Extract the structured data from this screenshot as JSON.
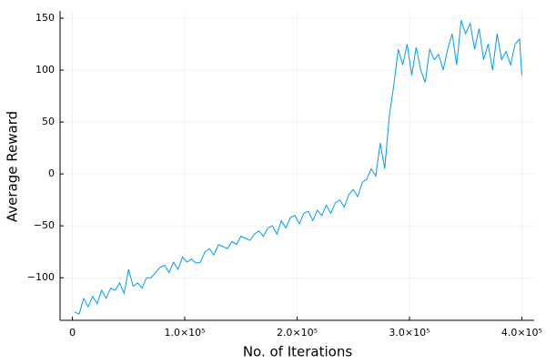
{
  "chart_data": {
    "type": "line",
    "xlabel": "No. of Iterations",
    "ylabel": "Average Reward",
    "x": [
      2000,
      6000,
      10000,
      14000,
      18000,
      22000,
      26000,
      30000,
      34000,
      38000,
      42000,
      46000,
      50000,
      54000,
      58000,
      62000,
      66000,
      70000,
      74000,
      78000,
      82000,
      86000,
      90000,
      94000,
      98000,
      102000,
      106000,
      110000,
      114000,
      118000,
      122000,
      126000,
      130000,
      134000,
      138000,
      142000,
      146000,
      150000,
      154000,
      158000,
      162000,
      166000,
      170000,
      174000,
      178000,
      182000,
      186000,
      190000,
      194000,
      198000,
      202000,
      206000,
      210000,
      214000,
      218000,
      222000,
      226000,
      230000,
      234000,
      238000,
      242000,
      246000,
      250000,
      254000,
      258000,
      262000,
      266000,
      270000,
      274000,
      278000,
      282000,
      286000,
      290000,
      294000,
      298000,
      302000,
      306000,
      310000,
      314000,
      318000,
      322000,
      326000,
      330000,
      334000,
      338000,
      342000,
      346000,
      350000,
      354000,
      358000,
      362000,
      366000,
      370000,
      374000,
      378000,
      382000,
      386000,
      390000,
      394000,
      398000,
      400000
    ],
    "series": [
      {
        "color": "#009af9",
        "values": [
          -133,
          -135,
          -120,
          -128,
          -118,
          -125,
          -112,
          -120,
          -110,
          -112,
          -105,
          -115,
          -92,
          -108,
          -105,
          -110,
          -100,
          -100,
          -95,
          -90,
          -88,
          -95,
          -85,
          -92,
          -80,
          -85,
          -82,
          -86,
          -85,
          -75,
          -72,
          -78,
          -68,
          -70,
          -72,
          -65,
          -68,
          -60,
          -62,
          -64,
          -58,
          -55,
          -60,
          -52,
          -50,
          -58,
          -45,
          -52,
          -42,
          -40,
          -48,
          -38,
          -36,
          -45,
          -35,
          -40,
          -30,
          -38,
          -28,
          -25,
          -32,
          -20,
          -15,
          -22,
          -8,
          -5,
          5,
          -2,
          30,
          5,
          55,
          85,
          120,
          105,
          125,
          95,
          122,
          100,
          88,
          120,
          110,
          115,
          100,
          120,
          135,
          105,
          148,
          135,
          145,
          120,
          140,
          110,
          125,
          100,
          135,
          110,
          118,
          105,
          125,
          130,
          95
        ]
      }
    ],
    "xlim": [
      -11000,
      411000
    ],
    "ylim": [
      -141,
      157
    ],
    "xticks": [
      0,
      {
        "value": 100000,
        "label": "1.0×10⁵"
      },
      {
        "value": 200000,
        "label": "2.0×10⁵"
      },
      {
        "value": 300000,
        "label": "3.0×10⁵"
      },
      {
        "value": 400000,
        "label": "4.0×10⁵"
      }
    ],
    "yticks": [
      {
        "value": -100,
        "label": "−100"
      },
      {
        "value": -50,
        "label": "−50"
      },
      0,
      50,
      100,
      150
    ],
    "grid": true
  }
}
